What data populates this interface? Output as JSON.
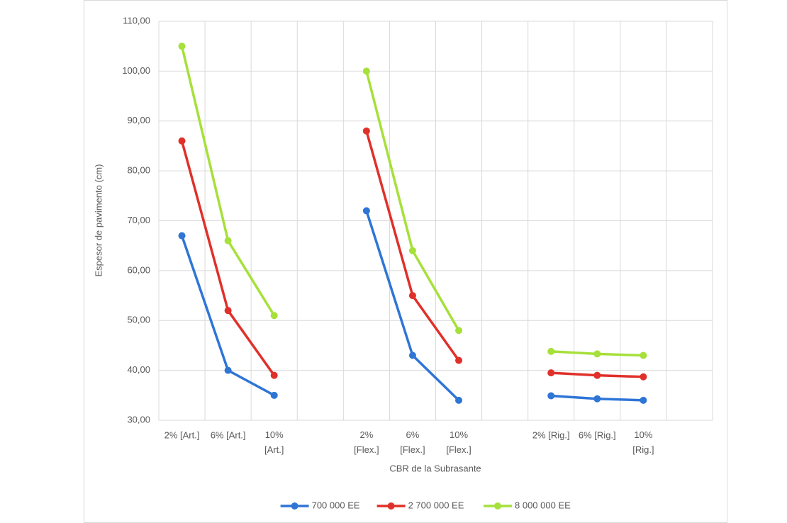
{
  "chart_data": {
    "type": "line",
    "categories": [
      "2% [Art.]",
      "6% [Art.]",
      "10% [Art.]",
      null,
      "2% [Flex.]",
      "6% [Flex.]",
      "10% [Flex.]",
      null,
      "2% [Rig.]",
      "6% [Rig.]",
      "10% [Rig.]",
      null
    ],
    "series": [
      {
        "name": "700 000 EE",
        "color": "#2e75d6",
        "values": [
          67,
          40,
          35,
          null,
          72,
          43,
          34,
          null,
          34.9,
          34.3,
          34,
          null
        ]
      },
      {
        "name": "2 700 000 EE",
        "color": "#e0302a",
        "values": [
          86,
          52,
          39,
          null,
          88,
          55,
          42,
          null,
          39.5,
          39,
          38.7,
          null
        ]
      },
      {
        "name": "8 000 000 EE",
        "color": "#a6e03a",
        "values": [
          105,
          66,
          51,
          null,
          100,
          64,
          48,
          null,
          43.8,
          43.3,
          43,
          null
        ]
      }
    ],
    "x_label": "CBR de la Subrasante",
    "y_label": "Espesor de pavimento (cm)",
    "ylim": [
      30,
      110
    ],
    "yticks": [
      {
        "value": 30,
        "label": "30,00"
      },
      {
        "value": 40,
        "label": "40,00"
      },
      {
        "value": 50,
        "label": "50,00"
      },
      {
        "value": 60,
        "label": "60,00"
      },
      {
        "value": 70,
        "label": "70,00"
      },
      {
        "value": 80,
        "label": "80,00"
      },
      {
        "value": 90,
        "label": "90,00"
      },
      {
        "value": 100,
        "label": "100,00"
      },
      {
        "value": 110,
        "label": "110,00"
      }
    ],
    "grid": true,
    "legend": "bottom"
  }
}
